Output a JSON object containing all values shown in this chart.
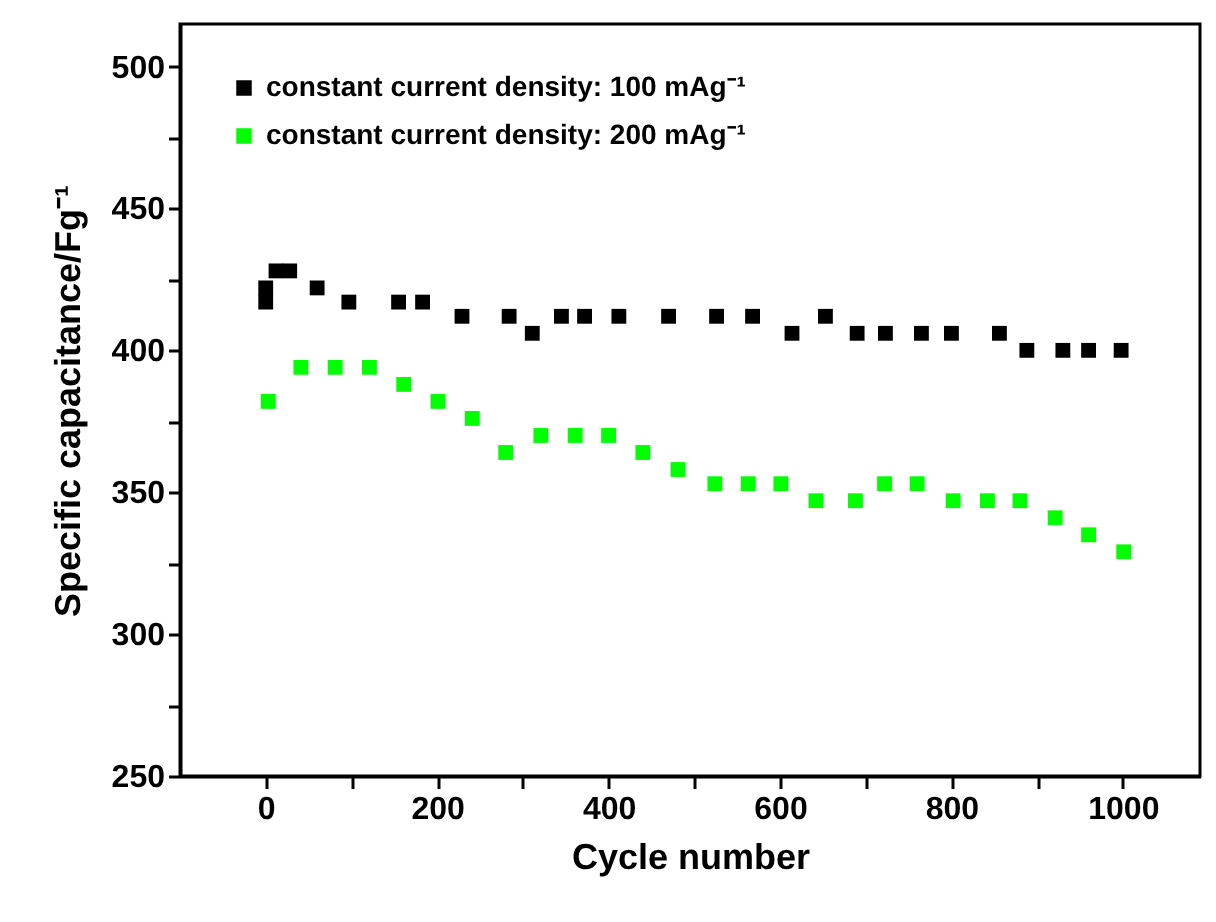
{
  "chart_data": {
    "type": "scatter",
    "xlabel": "Cycle number",
    "ylabel": "Specific capacitance/Fg⁻¹",
    "xlim": [
      -100,
      1090
    ],
    "ylim": [
      250,
      515
    ],
    "xticks": [
      0,
      {
        "value": 100,
        "label": null
      },
      200,
      {
        "value": 300,
        "label": null
      },
      400,
      {
        "value": 500,
        "label": null
      },
      600,
      {
        "value": 700,
        "label": null
      },
      800,
      {
        "value": 900,
        "label": null
      },
      1000
    ],
    "yticks": [
      250,
      {
        "value": 275,
        "label": null
      },
      300,
      {
        "value": 325,
        "label": null
      },
      350,
      {
        "value": 375,
        "label": null
      },
      400,
      {
        "value": 425,
        "label": null
      },
      450,
      {
        "value": 475,
        "label": null
      },
      500
    ],
    "marker": "square",
    "legend": "top left",
    "grid": false,
    "series": [
      {
        "name": "constant current density: 100 mAg⁻¹",
        "color": "#000000",
        "x": [
          0,
          0,
          12,
          28,
          60,
          97,
          155,
          183,
          229,
          284,
          311,
          345,
          372,
          412,
          470,
          526,
          568,
          614,
          653,
          690,
          723,
          765,
          800,
          856,
          888,
          930,
          960,
          998
        ],
        "values": [
          417,
          422,
          428,
          428,
          422,
          417,
          417,
          417,
          412,
          412,
          406,
          412,
          412,
          412,
          412,
          412,
          412,
          406,
          412,
          406,
          406,
          406,
          406,
          406,
          400,
          400,
          400,
          400
        ]
      },
      {
        "name": "constant current density: 200 mAg⁻¹",
        "color": "#00ff00",
        "x": [
          3,
          41,
          81,
          121,
          161,
          201,
          241,
          280,
          321,
          361,
          400,
          440,
          481,
          524,
          563,
          601,
          642,
          688,
          722,
          760,
          802,
          842,
          880,
          921,
          960,
          1001
        ],
        "values": [
          382,
          394,
          394,
          394,
          388,
          382,
          376,
          364,
          370,
          370,
          370,
          364,
          358,
          353,
          353,
          353,
          347,
          347,
          353,
          353,
          347,
          347,
          347,
          341,
          335,
          329
        ]
      }
    ]
  }
}
